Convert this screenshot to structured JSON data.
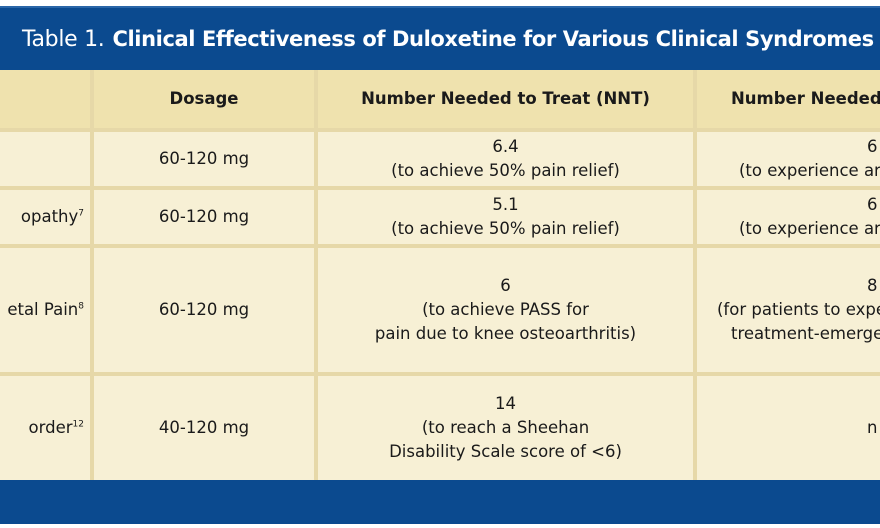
{
  "title": {
    "label": "Table 1.",
    "caption": "Clinical Effectiveness of Duloxetine for Various Clinical Syndromes"
  },
  "header": {
    "col0": "",
    "col1": "Dosage",
    "col2": "Number Needed to Treat (NNT)",
    "col3": "Number Needed"
  },
  "rows": [
    {
      "name": "",
      "sup": "",
      "dosage": "60-120 mg",
      "nnt": [
        "6.4",
        "(to achieve 50% pain relief)"
      ],
      "nnh": [
        "6",
        "(to experience ar"
      ]
    },
    {
      "name": "opathy",
      "sup": "7",
      "dosage": "60-120 mg",
      "nnt": [
        "5.1",
        "(to achieve 50% pain relief)"
      ],
      "nnh": [
        "6",
        "(to experience ar"
      ]
    },
    {
      "name": "etal Pain",
      "sup": "8",
      "dosage": "60-120 mg",
      "nnt": [
        "6",
        "(to achieve PASS for",
        "pain due to knee osteoarthritis)"
      ],
      "nnh": [
        "8",
        "(for patients to expe",
        "treatment-emerge"
      ]
    },
    {
      "name": "order",
      "sup": "12",
      "dosage": "40-120 mg",
      "nnt": [
        "14",
        "(to reach a Sheehan",
        "Disability Scale score of <6)"
      ],
      "nnh": [
        "n"
      ]
    }
  ]
}
